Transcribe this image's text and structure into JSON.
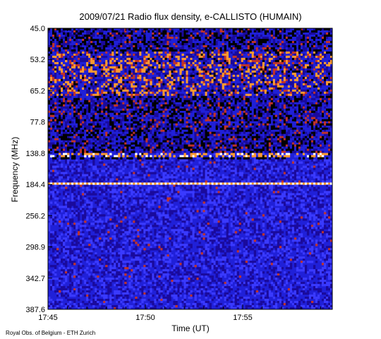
{
  "chart_data": {
    "type": "heatmap",
    "title": "2009/07/21  Radio flux density, e-CALLISTO (HUMAIN)",
    "xlabel": "Time (UT)",
    "ylabel": "Frequency (MHz)",
    "x_ticks": [
      "17:45",
      "17:50",
      "17:55"
    ],
    "y_ticks": [
      "45.0",
      "53.2",
      "65.2",
      "77.8",
      "138.8",
      "184.4",
      "256.2",
      "298.9",
      "342.7",
      "387.6"
    ],
    "colormap": [
      "#000000",
      "#1a0a9c",
      "#2020d8",
      "#3a3aff",
      "#c0332a",
      "#ff9a30",
      "#ffffff"
    ],
    "features": [
      {
        "label": "bright emission bands",
        "freq_mhz": [
          53.2,
          65.2
        ]
      },
      {
        "label": "bright emission band",
        "freq_mhz": [
          138.8,
          138.8
        ]
      },
      {
        "label": "narrowband line",
        "freq_mhz": [
          184.4,
          184.4
        ]
      }
    ]
  },
  "credit": "Royal Obs. of Belgium - ETH Zurich"
}
